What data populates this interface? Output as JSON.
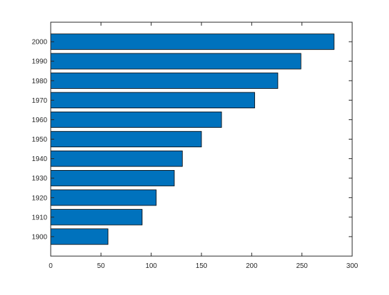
{
  "chart_data": {
    "type": "bar",
    "orientation": "horizontal",
    "categories": [
      "1900",
      "1910",
      "1920",
      "1930",
      "1940",
      "1950",
      "1960",
      "1970",
      "1980",
      "1990",
      "2000"
    ],
    "values": [
      57,
      91,
      105,
      123,
      131,
      150,
      170,
      203,
      226,
      249,
      282
    ],
    "xlim": [
      0,
      300
    ],
    "xticks": [
      0,
      50,
      100,
      150,
      200,
      250,
      300
    ],
    "title": "",
    "xlabel": "",
    "ylabel": "",
    "grid": false,
    "box": true,
    "colors": {
      "bar": "#0072BD",
      "edge": "#000000",
      "axis": "#262626"
    }
  }
}
